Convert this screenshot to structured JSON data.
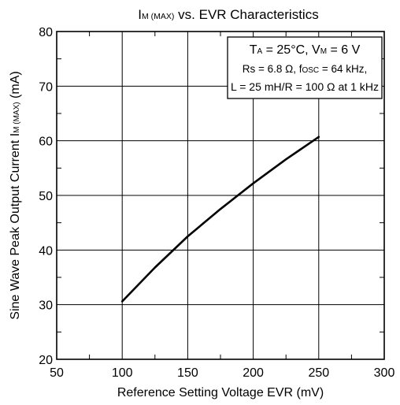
{
  "chart_data": {
    "type": "line",
    "title": {
      "main": "I",
      "sub": "M (MAX)",
      "rest": " vs. EVR Characteristics"
    },
    "xlabel": "Reference Setting Voltage EVR (mV)",
    "ylabel": {
      "pre": "Sine Wave Peak Output Current I",
      "sub": "M (MAX)",
      "post": " (mA)"
    },
    "xlim": [
      50,
      300
    ],
    "ylim": [
      20,
      80
    ],
    "x_ticks": [
      "50",
      "100",
      "150",
      "200",
      "250",
      "300"
    ],
    "y_ticks": [
      "20",
      "30",
      "40",
      "50",
      "60",
      "70",
      "80"
    ],
    "grid": true,
    "series": [
      {
        "x": [
          100,
          125,
          150,
          175,
          200,
          225,
          250
        ],
        "y": [
          30.6,
          36.8,
          42.5,
          47.5,
          52.2,
          56.6,
          60.7
        ]
      }
    ],
    "annotation": {
      "line1": {
        "a": "T",
        "a_sub": "A",
        "b": " = 25°C, V",
        "b_sub": "M",
        "c": " = 6 V"
      },
      "line2": {
        "a": "Rs = 6.8 Ω, f",
        "a_sub": "OSC",
        "b": " = 64 kHz,"
      },
      "line3": "L = 25 mH/R = 100 Ω at 1 kHz"
    }
  }
}
